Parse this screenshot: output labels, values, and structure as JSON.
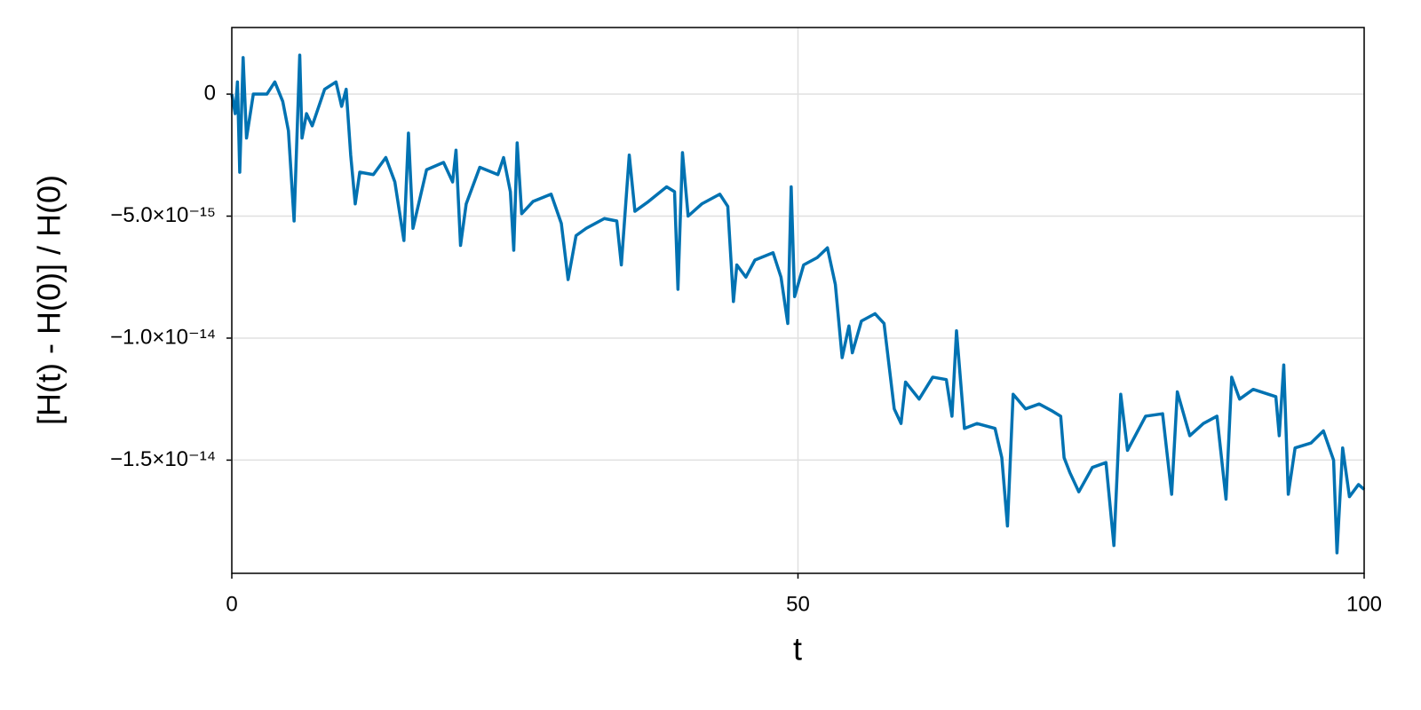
{
  "chart_data": {
    "type": "line",
    "xlabel": "t",
    "ylabel": "[H(t) - H(0)] / H(0)",
    "xlim": [
      0,
      100
    ],
    "xticks": [
      0,
      50,
      100
    ],
    "ylim": [
      -1.964e-14,
      2.73e-15
    ],
    "yticks": [
      {
        "value": 0,
        "label": "0"
      },
      {
        "value": -5e-15,
        "label": "−5.0×10⁻¹⁵"
      },
      {
        "value": -1e-14,
        "label": "−1.0×10⁻¹⁴"
      },
      {
        "value": -1.5e-14,
        "label": "−1.5×10⁻¹⁴"
      }
    ],
    "grid": true,
    "series": [
      {
        "color": "#0072b2",
        "x": [
          0,
          0.3,
          0.5,
          0.7,
          1,
          1.3,
          1.9,
          3.1,
          3.8,
          4.5,
          5,
          5.5,
          6,
          6.2,
          6.6,
          7.1,
          8.2,
          9.2,
          9.7,
          10.1,
          10.5,
          10.9,
          11.3,
          12.5,
          13.6,
          14.4,
          15.2,
          15.6,
          16,
          17.2,
          18.7,
          19.5,
          19.8,
          20.2,
          20.7,
          21.9,
          23.5,
          24,
          24.6,
          24.9,
          25.2,
          25.6,
          26.6,
          28.2,
          29.1,
          29.7,
          30.4,
          31.3,
          32.9,
          34,
          34.4,
          35.1,
          35.6,
          36.8,
          38.4,
          39.1,
          39.4,
          39.8,
          40.3,
          41.5,
          43.1,
          43.8,
          44.3,
          44.6,
          45.4,
          46.2,
          47.8,
          48.5,
          49.1,
          49.4,
          49.7,
          50.5,
          51.7,
          52.6,
          53.3,
          53.9,
          54.5,
          54.8,
          55.6,
          56.8,
          57.6,
          58.5,
          59.1,
          59.5,
          60.7,
          61.9,
          63.1,
          63.6,
          64,
          64.7,
          65.8,
          67.4,
          68,
          68.5,
          69,
          70.1,
          71.3,
          72.5,
          73.2,
          73.5,
          74,
          74.8,
          76,
          77.2,
          77.9,
          78.5,
          79.1,
          80.7,
          82.2,
          83,
          83.5,
          84.6,
          85.8,
          87,
          87.8,
          88.3,
          89,
          90.2,
          92.2,
          92.5,
          92.9,
          93.3,
          93.9,
          95.3,
          96.4,
          97.3,
          97.6,
          98.1,
          98.7,
          99.5,
          100
        ],
        "values": [
          0,
          -8e-16,
          5e-16,
          -3.2e-15,
          1.5e-15,
          -1.8e-15,
          0,
          0,
          5e-16,
          -3e-16,
          -1.5e-15,
          -5.2e-15,
          1.6e-15,
          -1.8e-15,
          -8e-16,
          -1.3e-15,
          2e-16,
          5e-16,
          -5e-16,
          2e-16,
          -2.5e-15,
          -4.5e-15,
          -3.2e-15,
          -3.3e-15,
          -2.6e-15,
          -3.6e-15,
          -6e-15,
          -1.6e-15,
          -5.5e-15,
          -3.1e-15,
          -2.8e-15,
          -3.6e-15,
          -2.3e-15,
          -6.2e-15,
          -4.5e-15,
          -3e-15,
          -3.3e-15,
          -2.6e-15,
          -4e-15,
          -6.4e-15,
          -2e-15,
          -4.9e-15,
          -4.4e-15,
          -4.1e-15,
          -5.3e-15,
          -7.6e-15,
          -5.8e-15,
          -5.5e-15,
          -5.1e-15,
          -5.2e-15,
          -7e-15,
          -2.5e-15,
          -4.8e-15,
          -4.4e-15,
          -3.8e-15,
          -4e-15,
          -8e-15,
          -2.4e-15,
          -5e-15,
          -4.5e-15,
          -4.1e-15,
          -4.6e-15,
          -8.5e-15,
          -7e-15,
          -7.5e-15,
          -6.8e-15,
          -6.5e-15,
          -7.5e-15,
          -9.4e-15,
          -3.8e-15,
          -8.3e-15,
          -7e-15,
          -6.7e-15,
          -6.3e-15,
          -7.8e-15,
          -1.08e-14,
          -9.5e-15,
          -1.06e-14,
          -9.3e-15,
          -9e-15,
          -9.4e-15,
          -1.29e-14,
          -1.35e-14,
          -1.18e-14,
          -1.25e-14,
          -1.16e-14,
          -1.17e-14,
          -1.32e-14,
          -9.7e-15,
          -1.37e-14,
          -1.35e-14,
          -1.37e-14,
          -1.49e-14,
          -1.77e-14,
          -1.23e-14,
          -1.29e-14,
          -1.27e-14,
          -1.3e-14,
          -1.32e-14,
          -1.49e-14,
          -1.55e-14,
          -1.63e-14,
          -1.53e-14,
          -1.51e-14,
          -1.85e-14,
          -1.23e-14,
          -1.46e-14,
          -1.32e-14,
          -1.31e-14,
          -1.64e-14,
          -1.22e-14,
          -1.4e-14,
          -1.35e-14,
          -1.32e-14,
          -1.66e-14,
          -1.16e-14,
          -1.25e-14,
          -1.21e-14,
          -1.24e-14,
          -1.4e-14,
          -1.11e-14,
          -1.64e-14,
          -1.45e-14,
          -1.43e-14,
          -1.38e-14,
          -1.5e-14,
          -1.88e-14,
          -1.45e-14,
          -1.65e-14,
          -1.6e-14,
          -1.62e-14
        ]
      }
    ]
  }
}
